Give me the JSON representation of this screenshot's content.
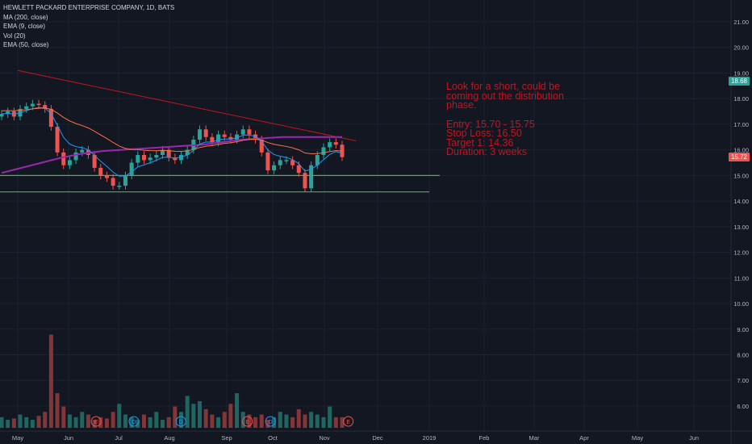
{
  "legend": {
    "symbol": "HEWLETT PACKARD ENTERPRISE COMPANY, 1D, BATS",
    "ma200": "MA (200, close)",
    "ema9": "EMA (9, close)",
    "vol": "Vol (20)",
    "ema50": "EMA (50, close)"
  },
  "note": {
    "line1": "Look for a short, could be",
    "line2": "coming out the distribution",
    "line3": "phase.",
    "entry": "Entry: 15.70 - 15.75",
    "stop": "Stop Loss: 16.50",
    "target": "Target 1: 14.36",
    "duration": "Duration: 3 weeks"
  },
  "price_tags": {
    "ma_value": "18.68",
    "last_price": "15.72"
  },
  "colors": {
    "background": "#131722",
    "up": "#26a69a",
    "down": "#ef5350",
    "ma200": "#9c27b0",
    "ema9": "#2196f3",
    "ema50": "#ff7043",
    "trendline": "#c2151f",
    "support": "#4caf50",
    "note": "#c2151f"
  },
  "chart_data": {
    "type": "candlestick",
    "x_months": [
      "May",
      "Jun",
      "Jul",
      "Aug",
      "Sep",
      "Oct",
      "Nov",
      "Dec",
      "2019",
      "Feb",
      "Mar",
      "Apr",
      "May",
      "Jun"
    ],
    "price_axis_ticks": [
      "21.00",
      "20.00",
      "19.00",
      "18.00",
      "17.00",
      "16.00",
      "15.00",
      "14.00",
      "13.00",
      "12.00",
      "11.00",
      "10.00",
      "9.00",
      "8.00",
      "7.00",
      "6.00"
    ],
    "event_markers": [
      {
        "label": "E",
        "month_pos": 1.55
      },
      {
        "label": "D",
        "month_pos": 2.3
      },
      {
        "label": "D",
        "month_pos": 3.2
      },
      {
        "label": "E",
        "month_pos": 4.45
      },
      {
        "label": "D",
        "month_pos": 4.95
      },
      {
        "label": "E",
        "month_pos": 6.45
      }
    ],
    "support_levels": [
      15.0,
      14.36
    ],
    "trendline": {
      "from": {
        "month_pos": 0.0,
        "price": 19.1
      },
      "to": {
        "month_pos": 6.6,
        "price": 16.35
      }
    },
    "close_series": [
      17.4,
      17.5,
      17.3,
      17.6,
      17.7,
      17.8,
      17.75,
      17.6,
      16.9,
      15.9,
      15.4,
      15.6,
      15.9,
      16.0,
      15.8,
      15.3,
      15.0,
      14.9,
      14.6,
      14.6,
      15.0,
      15.5,
      15.8,
      15.6,
      15.7,
      15.8,
      16.0,
      15.7,
      15.6,
      15.8,
      16.0,
      16.4,
      16.8,
      16.5,
      16.3,
      16.6,
      16.5,
      16.4,
      16.6,
      16.8,
      16.6,
      16.4,
      15.9,
      15.2,
      15.4,
      15.6,
      15.6,
      15.4,
      15.1,
      14.5,
      15.4,
      15.8,
      16.1,
      16.3,
      16.2,
      15.72
    ],
    "ma200_series": [
      15.1,
      15.3,
      15.5,
      15.7,
      15.85,
      15.95,
      16.0,
      16.05,
      16.1,
      16.15,
      16.2,
      16.3,
      16.4,
      16.45,
      16.5,
      16.5,
      16.5,
      16.5
    ],
    "volume_series": [
      0.4,
      0.3,
      0.35,
      0.5,
      0.4,
      0.3,
      0.45,
      0.6,
      3.5,
      1.3,
      0.8,
      0.5,
      0.4,
      0.6,
      0.5,
      0.3,
      0.4,
      0.35,
      0.6,
      0.9,
      0.5,
      0.4,
      0.3,
      0.5,
      0.4,
      0.6,
      0.3,
      0.4,
      0.8,
      0.6,
      1.2,
      0.9,
      1.0,
      0.7,
      0.5,
      0.4,
      0.6,
      0.9,
      1.3,
      0.6,
      0.5,
      0.4,
      0.5,
      0.3,
      0.4,
      0.6,
      0.5,
      0.4,
      0.7,
      0.5,
      0.6,
      0.5,
      0.4,
      0.8,
      0.4,
      0.4
    ],
    "ylim": [
      5.5,
      21.5
    ]
  }
}
